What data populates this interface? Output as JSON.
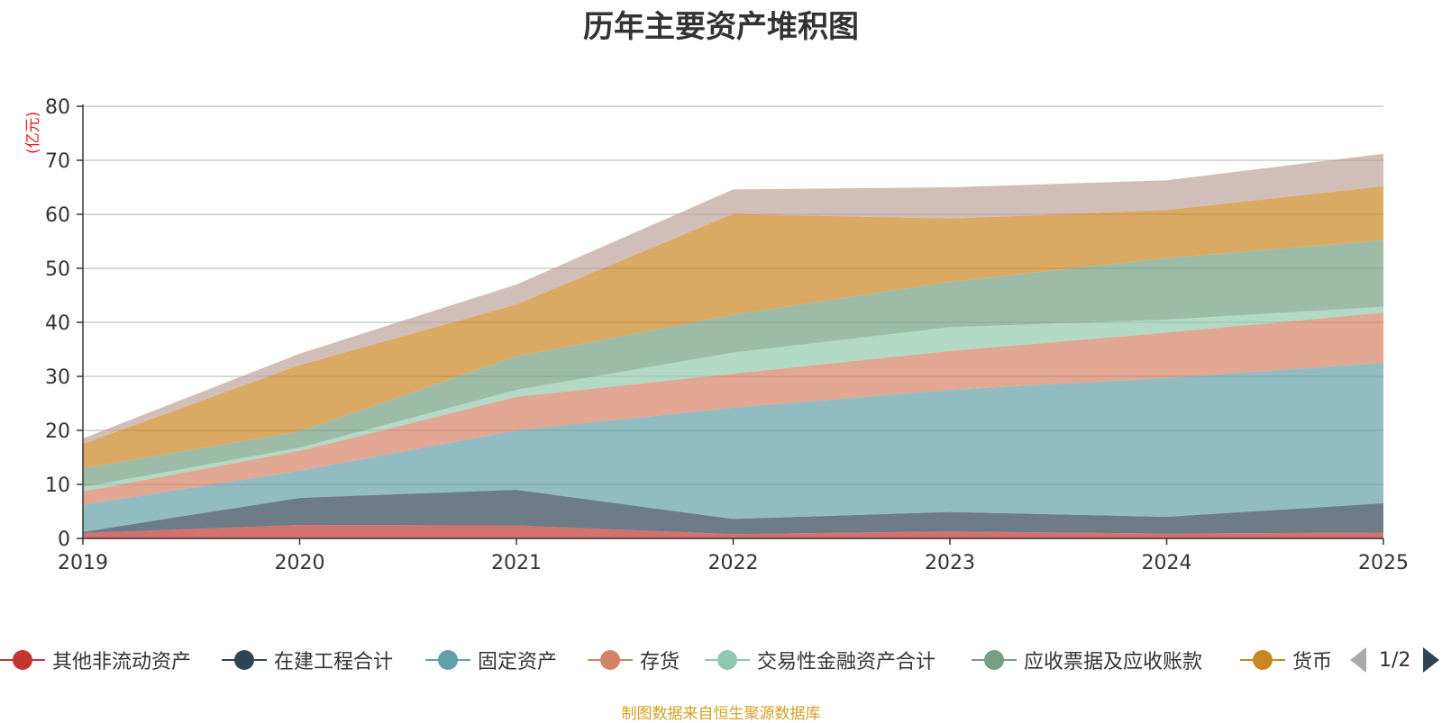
{
  "chart_data": {
    "type": "area",
    "title": "历年主要资产堆积图",
    "ylabel": "(亿元)",
    "ylim": [
      0,
      80
    ],
    "yticks": [
      "0",
      "10",
      "20",
      "30",
      "40",
      "50",
      "60",
      "70",
      "80"
    ],
    "categories": [
      "2019",
      "2020",
      "2021",
      "2022",
      "2023",
      "2024",
      "2025"
    ],
    "stacked": true,
    "grid": true,
    "legend_position": "bottom",
    "series": [
      {
        "name": "其他非流动资产",
        "color": "#c23531",
        "values": [
          1.0,
          2.5,
          2.4,
          0.8,
          1.3,
          0.9,
          1.1
        ]
      },
      {
        "name": "在建工程合计",
        "color": "#2f4554",
        "values": [
          0.2,
          5.0,
          6.6,
          2.8,
          3.6,
          3.1,
          5.4
        ]
      },
      {
        "name": "固定资产",
        "color": "#61a0a8",
        "values": [
          5.0,
          5.0,
          11.0,
          20.6,
          22.6,
          25.7,
          26.0
        ]
      },
      {
        "name": "存货",
        "color": "#d48265",
        "values": [
          2.5,
          3.7,
          6.2,
          6.3,
          7.2,
          8.4,
          9.3
        ]
      },
      {
        "name": "交易性金融资产合计",
        "color": "#91c7ae",
        "values": [
          0.8,
          0.6,
          1.3,
          3.9,
          4.4,
          2.4,
          1.1
        ]
      },
      {
        "name": "应收票据及应收账款",
        "color": "#749f83",
        "values": [
          3.5,
          3.0,
          6.2,
          7.0,
          8.4,
          11.4,
          12.3
        ]
      },
      {
        "name": "货币",
        "color": "#ca8622",
        "values": [
          4.5,
          12.3,
          9.6,
          18.7,
          11.7,
          8.9,
          10.0
        ]
      },
      {
        "name": "",
        "color": "#bda29a",
        "values": [
          1.0,
          2.1,
          3.7,
          4.5,
          5.8,
          5.5,
          6.0
        ]
      }
    ]
  },
  "legend": {
    "items": [
      {
        "label": "其他非流动资产",
        "color": "#c23531"
      },
      {
        "label": "在建工程合计",
        "color": "#2f4554"
      },
      {
        "label": "固定资产",
        "color": "#61a0a8"
      },
      {
        "label": "存货",
        "color": "#d48265"
      },
      {
        "label": "交易性金融资产合计",
        "color": "#91c7ae"
      },
      {
        "label": "应收票据及应收账款",
        "color": "#749f83"
      },
      {
        "label": "货币",
        "color": "#ca8622"
      }
    ],
    "pager": "1/2",
    "prev_icon": "triangle-left-icon",
    "next_icon": "triangle-right-icon"
  },
  "footer": "制图数据来自恒生聚源数据库"
}
